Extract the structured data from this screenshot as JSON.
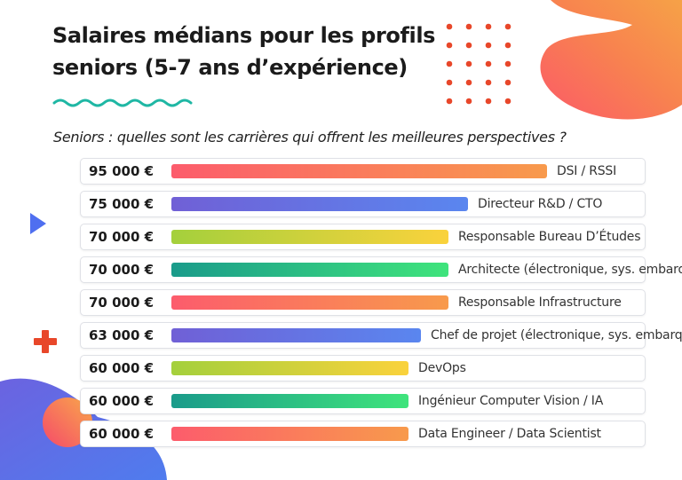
{
  "title_line1": "Salaires médians pour les profils",
  "title_line2": "seniors (5-7 ans d’expérience)",
  "subtitle": "Seniors : quelles sont  les carrières qui offrent les meilleures perspectives ?",
  "chart_data": {
    "type": "bar",
    "orientation": "horizontal",
    "title": "Salaires médians pour les profils seniors (5-7 ans d’expérience)",
    "subtitle": "Seniors : quelles sont  les carrières qui offrent les meilleures perspectives ?",
    "unit": "€",
    "xlim": [
      0,
      95000
    ],
    "grid": false,
    "rows": [
      {
        "label": "DSI / RSSI",
        "value": 95000,
        "value_label": "95 000 €",
        "gradient": [
          "#fc5c6c",
          "#f89a4c"
        ]
      },
      {
        "label": "Directeur R&D / CTO",
        "value": 75000,
        "value_label": "75 000 €",
        "gradient": [
          "#7060d6",
          "#5a86ef"
        ]
      },
      {
        "label": "Responsable Bureau D’Études",
        "value": 70000,
        "value_label": "70 000 €",
        "gradient": [
          "#a4d03c",
          "#fad23c"
        ]
      },
      {
        "label": "Architecte (électronique, sys. embarqués)",
        "value": 70000,
        "value_label": "70 000 €",
        "gradient": [
          "#1a9b8a",
          "#3fe47c"
        ]
      },
      {
        "label": "Responsable Infrastructure",
        "value": 70000,
        "value_label": "70 000 €",
        "gradient": [
          "#fc5c6c",
          "#f89a4c"
        ]
      },
      {
        "label": "Chef de projet (électronique, sys. embarqués)",
        "value": 63000,
        "value_label": "63 000 €",
        "gradient": [
          "#7060d6",
          "#5a86ef"
        ]
      },
      {
        "label": "DevOps",
        "value": 60000,
        "value_label": "60 000 €",
        "gradient": [
          "#a4d03c",
          "#fad23c"
        ]
      },
      {
        "label": "Ingénieur Computer Vision / IA",
        "value": 60000,
        "value_label": "60 000 €",
        "gradient": [
          "#1a9b8a",
          "#3fe47c"
        ]
      },
      {
        "label": "Data Engineer / Data Scientist",
        "value": 60000,
        "value_label": "60 000 €",
        "gradient": [
          "#fc5c6c",
          "#f89a4c"
        ]
      }
    ]
  },
  "colors": {
    "accent_red": "#e8472a",
    "accent_orange": "#f89a4c",
    "accent_blue": "#5a7ff0",
    "accent_teal": "#1fb7a4"
  },
  "decorations": [
    "orange-blob",
    "dot-grid",
    "wave-line",
    "blue-triangle",
    "orange-cross",
    "purple-blob",
    "gradient-circle"
  ]
}
